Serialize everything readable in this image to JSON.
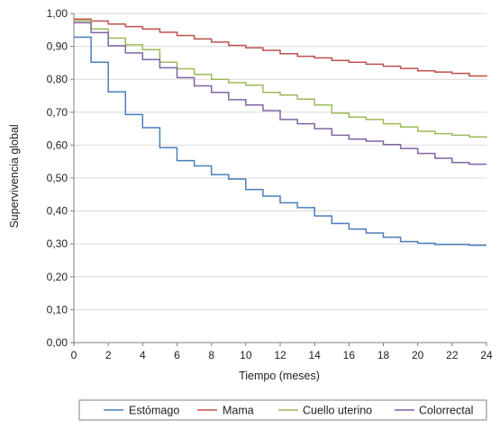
{
  "chart_data": {
    "type": "line",
    "step": true,
    "xlabel": "Tiempo (meses)",
    "ylabel": "Supervivencia global",
    "xlim": [
      0,
      24
    ],
    "ylim": [
      0,
      1
    ],
    "x_ticks": [
      0,
      2,
      4,
      6,
      8,
      10,
      12,
      14,
      16,
      18,
      20,
      22,
      24
    ],
    "y_ticks": [
      "0,00",
      "0,10",
      "0,20",
      "0,30",
      "0,40",
      "0,50",
      "0,60",
      "0,70",
      "0,80",
      "0,90",
      "1,00"
    ],
    "grid": "horizontal",
    "legend_position": "bottom",
    "series": [
      {
        "name": "Estómago",
        "color": "#4a7ebb",
        "points": [
          [
            0,
            0.928
          ],
          [
            1,
            0.852
          ],
          [
            2,
            0.762
          ],
          [
            3,
            0.693
          ],
          [
            4,
            0.653
          ],
          [
            5,
            0.592
          ],
          [
            6,
            0.553
          ],
          [
            7,
            0.537
          ],
          [
            8,
            0.51
          ],
          [
            9,
            0.497
          ],
          [
            10,
            0.465
          ],
          [
            11,
            0.445
          ],
          [
            12,
            0.425
          ],
          [
            13,
            0.41
          ],
          [
            14,
            0.385
          ],
          [
            15,
            0.362
          ],
          [
            16,
            0.345
          ],
          [
            17,
            0.333
          ],
          [
            18,
            0.32
          ],
          [
            19,
            0.307
          ],
          [
            20,
            0.302
          ],
          [
            21,
            0.298
          ],
          [
            22,
            0.298
          ],
          [
            23,
            0.296
          ],
          [
            24,
            0.296
          ]
        ]
      },
      {
        "name": "Mama",
        "color": "#c0504d",
        "points": [
          [
            0,
            0.983
          ],
          [
            1,
            0.977
          ],
          [
            2,
            0.968
          ],
          [
            3,
            0.96
          ],
          [
            4,
            0.953
          ],
          [
            5,
            0.943
          ],
          [
            6,
            0.933
          ],
          [
            7,
            0.923
          ],
          [
            8,
            0.913
          ],
          [
            9,
            0.903
          ],
          [
            10,
            0.896
          ],
          [
            11,
            0.888
          ],
          [
            12,
            0.878
          ],
          [
            13,
            0.87
          ],
          [
            14,
            0.865
          ],
          [
            15,
            0.857
          ],
          [
            16,
            0.852
          ],
          [
            17,
            0.846
          ],
          [
            18,
            0.84
          ],
          [
            19,
            0.833
          ],
          [
            20,
            0.826
          ],
          [
            21,
            0.822
          ],
          [
            22,
            0.818
          ],
          [
            23,
            0.81
          ],
          [
            24,
            0.808
          ]
        ]
      },
      {
        "name": "Cuello uterino",
        "color": "#9bbb59",
        "points": [
          [
            0,
            0.978
          ],
          [
            1,
            0.953
          ],
          [
            2,
            0.925
          ],
          [
            3,
            0.905
          ],
          [
            4,
            0.89
          ],
          [
            5,
            0.852
          ],
          [
            6,
            0.832
          ],
          [
            7,
            0.815
          ],
          [
            8,
            0.8
          ],
          [
            9,
            0.79
          ],
          [
            10,
            0.782
          ],
          [
            11,
            0.76
          ],
          [
            12,
            0.752
          ],
          [
            13,
            0.74
          ],
          [
            14,
            0.722
          ],
          [
            15,
            0.697
          ],
          [
            16,
            0.685
          ],
          [
            17,
            0.678
          ],
          [
            18,
            0.665
          ],
          [
            19,
            0.655
          ],
          [
            20,
            0.642
          ],
          [
            21,
            0.635
          ],
          [
            22,
            0.63
          ],
          [
            23,
            0.625
          ],
          [
            24,
            0.622
          ]
        ]
      },
      {
        "name": "Colorrectal",
        "color": "#8064a2",
        "points": [
          [
            0,
            0.972
          ],
          [
            1,
            0.942
          ],
          [
            2,
            0.902
          ],
          [
            3,
            0.88
          ],
          [
            4,
            0.86
          ],
          [
            5,
            0.835
          ],
          [
            6,
            0.805
          ],
          [
            7,
            0.78
          ],
          [
            8,
            0.76
          ],
          [
            9,
            0.738
          ],
          [
            10,
            0.722
          ],
          [
            11,
            0.705
          ],
          [
            12,
            0.678
          ],
          [
            13,
            0.665
          ],
          [
            14,
            0.65
          ],
          [
            15,
            0.63
          ],
          [
            16,
            0.618
          ],
          [
            17,
            0.612
          ],
          [
            18,
            0.602
          ],
          [
            19,
            0.59
          ],
          [
            20,
            0.575
          ],
          [
            21,
            0.56
          ],
          [
            22,
            0.547
          ],
          [
            23,
            0.542
          ],
          [
            24,
            0.542
          ]
        ]
      }
    ]
  }
}
